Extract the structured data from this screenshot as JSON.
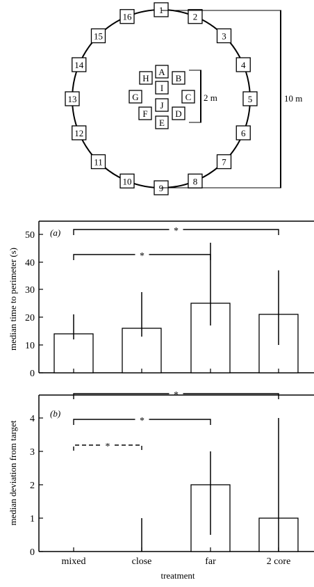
{
  "diagram": {
    "perimeter_labels": [
      "1",
      "2",
      "3",
      "4",
      "5",
      "6",
      "7",
      "8",
      "9",
      "10",
      "11",
      "12",
      "13",
      "14",
      "15",
      "16"
    ],
    "core_labels": [
      "A",
      "B",
      "C",
      "D",
      "E",
      "F",
      "G",
      "H",
      "I",
      "J"
    ],
    "dim_small": "2 m",
    "dim_large": "10 m"
  },
  "chart_data": [
    {
      "type": "bar",
      "panel_label": "(a)",
      "categories": [
        "mixed",
        "close",
        "far",
        "2 core"
      ],
      "values": [
        14,
        16,
        25,
        21
      ],
      "error_low": [
        12,
        13,
        17,
        10
      ],
      "error_high": [
        21,
        29,
        47,
        37
      ],
      "ylabel": "median time to perimeter (s)",
      "y_ticks": [
        "0",
        "10",
        "20",
        "30",
        "40",
        "50"
      ],
      "ylim": [
        0,
        52
      ],
      "significance": [
        {
          "from": "mixed",
          "to": "2 core",
          "label": "*",
          "style": "solid"
        },
        {
          "from": "mixed",
          "to": "far",
          "label": "*",
          "style": "solid"
        }
      ]
    },
    {
      "type": "bar",
      "panel_label": "(b)",
      "categories": [
        "mixed",
        "close",
        "far",
        "2 core"
      ],
      "values": [
        0,
        0,
        2,
        1
      ],
      "error_low": [
        0,
        0,
        0.5,
        0
      ],
      "error_high": [
        0,
        1,
        3,
        4
      ],
      "ylabel": "median deviation from target",
      "xlabel": "treatment",
      "y_ticks": [
        "0",
        "1",
        "2",
        "3",
        "4"
      ],
      "ylim": [
        0,
        4.4
      ],
      "significance": [
        {
          "from": "mixed",
          "to": "2 core",
          "label": "*",
          "style": "solid"
        },
        {
          "from": "mixed",
          "to": "far",
          "label": "*",
          "style": "solid"
        },
        {
          "from": "mixed",
          "to": "close",
          "label": "*",
          "style": "dashed"
        }
      ]
    }
  ]
}
